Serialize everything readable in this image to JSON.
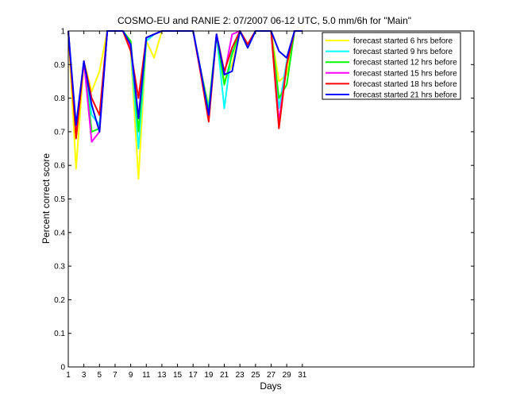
{
  "chart_data": {
    "type": "line",
    "title": "COSMO-EU and RANIE 2: 07/2007 06-12 UTC, 5.0 mm/6h for \"Main\"",
    "xlabel": "Days",
    "ylabel": "Percent correct score",
    "xlim": [
      1,
      53
    ],
    "ylim": [
      0,
      1
    ],
    "xticks": [
      1,
      3,
      5,
      7,
      9,
      11,
      13,
      15,
      17,
      19,
      21,
      23,
      25,
      27,
      29,
      31
    ],
    "yticks": [
      0,
      0.1,
      0.2,
      0.3,
      0.4,
      0.5,
      0.6,
      0.7,
      0.8,
      0.9,
      1
    ],
    "grid": false,
    "legend_position": "top-right",
    "x": [
      1,
      2,
      3,
      4,
      5,
      6,
      7,
      8,
      9,
      10,
      11,
      12,
      13,
      14,
      15,
      16,
      17,
      18,
      19,
      20,
      21,
      22,
      23,
      24,
      25,
      26,
      27,
      28,
      29,
      30,
      31
    ],
    "series": [
      {
        "name": "forecast started 6 hrs before",
        "color": "#ffff00",
        "values": [
          1.0,
          0.59,
          0.91,
          0.82,
          0.88,
          1.0,
          1.0,
          1.0,
          0.94,
          0.56,
          0.97,
          0.92,
          1.0,
          1.0,
          1.0,
          1.0,
          1.0,
          0.88,
          0.78,
          0.99,
          0.85,
          0.9,
          1.0,
          0.96,
          1.0,
          1.0,
          1.0,
          0.85,
          0.87,
          1.0,
          1.0
        ]
      },
      {
        "name": "forecast started 9 hrs before",
        "color": "#00ffff",
        "values": [
          1.0,
          0.7,
          0.91,
          0.75,
          0.72,
          1.0,
          1.0,
          1.0,
          0.95,
          0.65,
          0.97,
          0.99,
          1.0,
          1.0,
          1.0,
          1.0,
          1.0,
          0.88,
          0.77,
          0.99,
          0.77,
          0.95,
          1.0,
          0.95,
          1.0,
          1.0,
          1.0,
          0.77,
          0.91,
          1.0,
          1.0
        ]
      },
      {
        "name": "forecast started 12 hrs before",
        "color": "#00ff00",
        "values": [
          1.0,
          0.7,
          0.91,
          0.7,
          0.71,
          1.0,
          1.0,
          1.0,
          0.97,
          0.7,
          0.98,
          0.99,
          1.0,
          1.0,
          1.0,
          1.0,
          1.0,
          0.88,
          0.76,
          0.99,
          0.84,
          0.93,
          1.0,
          0.96,
          1.0,
          1.0,
          1.0,
          0.8,
          0.84,
          1.0,
          1.0
        ]
      },
      {
        "name": "forecast started 15 hrs before",
        "color": "#ff00ff",
        "values": [
          1.0,
          0.69,
          0.91,
          0.67,
          0.7,
          1.0,
          1.0,
          1.0,
          0.95,
          0.74,
          0.98,
          0.99,
          1.0,
          1.0,
          1.0,
          1.0,
          1.0,
          0.87,
          0.74,
          0.99,
          0.87,
          0.99,
          1.0,
          0.96,
          1.0,
          1.0,
          1.0,
          0.73,
          0.9,
          1.0,
          1.0
        ]
      },
      {
        "name": "forecast started 18 hrs before",
        "color": "#ff0000",
        "values": [
          1.0,
          0.68,
          0.91,
          0.8,
          0.75,
          1.0,
          1.0,
          1.0,
          0.94,
          0.8,
          0.98,
          0.99,
          1.0,
          1.0,
          1.0,
          1.0,
          1.0,
          0.87,
          0.73,
          0.99,
          0.88,
          0.95,
          1.0,
          0.96,
          1.0,
          1.0,
          1.0,
          0.71,
          0.9,
          1.0,
          1.0
        ]
      },
      {
        "name": "forecast started 21 hrs before",
        "color": "#0000ff",
        "values": [
          1.0,
          0.72,
          0.91,
          0.78,
          0.7,
          1.0,
          1.0,
          1.0,
          0.96,
          0.74,
          0.98,
          0.99,
          1.0,
          1.0,
          1.0,
          1.0,
          1.0,
          0.88,
          0.75,
          0.99,
          0.87,
          0.88,
          1.0,
          0.95,
          1.0,
          1.0,
          1.0,
          0.94,
          0.92,
          1.0,
          1.0
        ]
      }
    ]
  }
}
